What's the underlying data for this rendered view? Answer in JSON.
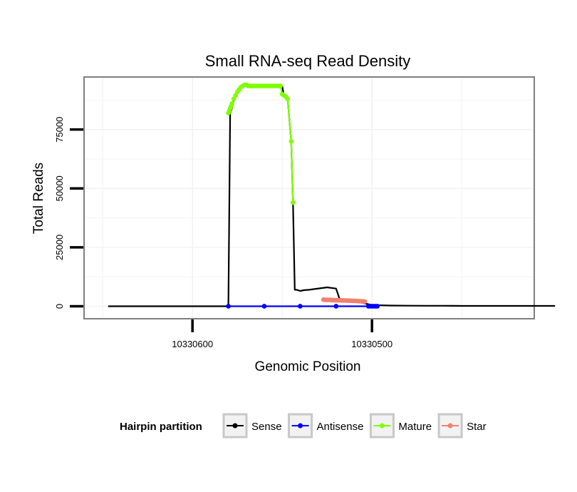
{
  "chart_data": {
    "type": "line",
    "title": "Small RNA-seq Read Density",
    "xlabel": "Genomic Position",
    "ylabel": "Total Reads",
    "x_reversed": true,
    "xlim": [
      10330660,
      10330410
    ],
    "ylim": [
      -5000,
      97000
    ],
    "x_ticks": [
      {
        "value": 10330600,
        "label": "10330600"
      },
      {
        "value": 10330500,
        "label": "10330500"
      }
    ],
    "y_ticks": [
      {
        "value": 0,
        "label": "0"
      },
      {
        "value": 25000,
        "label": "25000"
      },
      {
        "value": 50000,
        "label": "50000"
      },
      {
        "value": 75000,
        "label": "75000"
      }
    ],
    "grid": true,
    "legend": {
      "title": "Hairpin partition",
      "placement": "bottom",
      "entries": [
        {
          "name": "Sense",
          "color": "#000000"
        },
        {
          "name": "Antisense",
          "color": "#0000ff"
        },
        {
          "name": "Mature",
          "color": "#7fff00"
        },
        {
          "name": "Star",
          "color": "#f08070"
        }
      ]
    },
    "series": [
      {
        "name": "Sense",
        "color": "#000000",
        "marker": false,
        "x": [
          10330647,
          10330580,
          10330579,
          10330578,
          10330577,
          10330575,
          10330573,
          10330571,
          10330569,
          10330566,
          10330563,
          10330560,
          10330557,
          10330554,
          10330552,
          10330550,
          10330549,
          10330548,
          10330547,
          10330545,
          10330544,
          10330543,
          10330542,
          10330540,
          10330538,
          10330535,
          10330525,
          10330520,
          10330518,
          10330517,
          10330515,
          10330510,
          10330500,
          10330490,
          10330480,
          10330470,
          10330460,
          10330450,
          10330440,
          10330420,
          10330398
        ],
        "y": [
          0,
          0,
          82000,
          84000,
          88000,
          91000,
          93000,
          94000,
          93500,
          93500,
          93500,
          93500,
          93500,
          93500,
          93500,
          93500,
          89000,
          88500,
          88000,
          70000,
          44000,
          7000,
          7000,
          6500,
          6800,
          7000,
          8000,
          7500,
          3000,
          2800,
          2600,
          2300,
          500,
          300,
          250,
          200,
          200,
          150,
          150,
          150,
          150
        ]
      },
      {
        "name": "Antisense",
        "color": "#0000ff",
        "marker": true,
        "x": [
          10330580,
          10330560,
          10330540,
          10330520,
          10330502,
          10330501,
          10330500,
          10330499,
          10330498,
          10330497
        ],
        "y": [
          0,
          0,
          0,
          0,
          0,
          0,
          0,
          0,
          0,
          0
        ]
      },
      {
        "name": "Mature",
        "color": "#7fff00",
        "marker": true,
        "x": [
          10330580,
          10330579.5,
          10330579,
          10330578.5,
          10330578,
          10330577,
          10330576,
          10330575,
          10330574,
          10330573,
          10330572,
          10330571,
          10330570,
          10330569,
          10330568,
          10330567,
          10330566,
          10330565,
          10330564,
          10330563,
          10330562,
          10330561,
          10330560,
          10330559,
          10330558,
          10330557,
          10330556,
          10330555,
          10330554,
          10330553,
          10330552,
          10330551,
          10330550,
          10330549,
          10330548,
          10330547,
          10330545,
          10330544
        ],
        "y": [
          82000,
          83000,
          84000,
          85000,
          86000,
          88000,
          89500,
          91000,
          92000,
          93000,
          93500,
          94000,
          94000,
          93500,
          93500,
          93500,
          93500,
          93500,
          93500,
          93500,
          93500,
          93500,
          93500,
          93500,
          93500,
          93500,
          93500,
          93500,
          93500,
          93500,
          93500,
          93500,
          90000,
          89500,
          89000,
          88000,
          70000,
          44000
        ]
      },
      {
        "name": "Star",
        "color": "#f08070",
        "marker": true,
        "x": [
          10330527,
          10330526,
          10330525,
          10330524,
          10330523,
          10330522,
          10330521,
          10330520,
          10330519,
          10330518,
          10330517,
          10330516,
          10330515,
          10330514,
          10330513,
          10330512,
          10330511,
          10330510,
          10330509,
          10330508,
          10330507,
          10330506,
          10330505,
          10330504
        ],
        "y": [
          2800,
          2750,
          2700,
          2700,
          2650,
          2600,
          2600,
          2550,
          2550,
          2500,
          2500,
          2450,
          2450,
          2400,
          2400,
          2350,
          2300,
          2300,
          2250,
          2200,
          2150,
          2100,
          2050,
          2000
        ]
      }
    ]
  }
}
